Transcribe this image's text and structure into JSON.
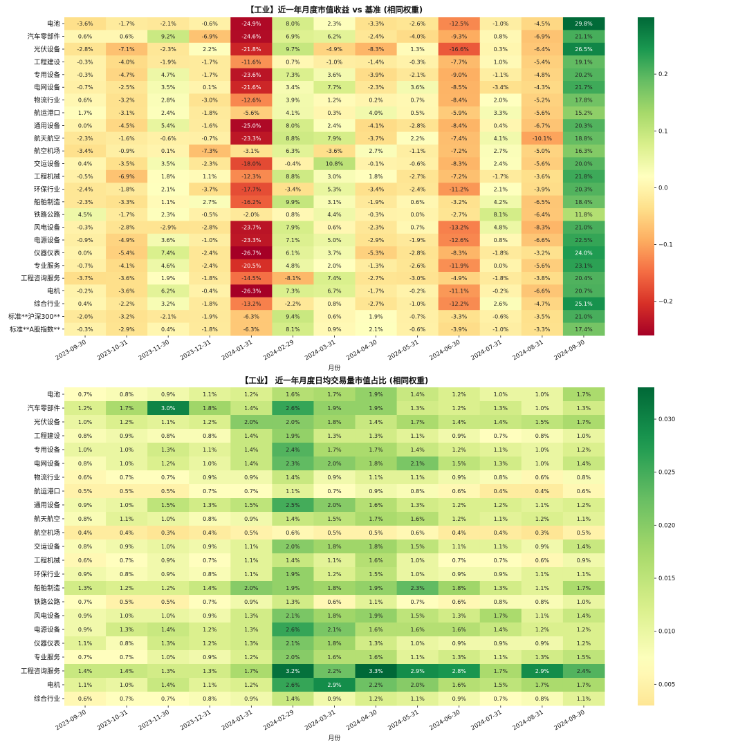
{
  "chart_data": [
    {
      "type": "heatmap",
      "title": "【工业】近一年月度市值收益 vs 基准 (相同权重)",
      "xlabel": "月份",
      "ylabel": "",
      "x_categories": [
        "2023-09-30",
        "2023-10-31",
        "2023-11-30",
        "2023-12-31",
        "2024-01-31",
        "2024-02-29",
        "2024-03-31",
        "2024-04-30",
        "2024-05-31",
        "2024-06-30",
        "2024-07-31",
        "2024-08-31",
        "2024-09-30"
      ],
      "y_categories": [
        "电池",
        "汽车零部件",
        "光伏设备",
        "工程建设",
        "专用设备",
        "电网设备",
        "物流行业",
        "航运港口",
        "通用设备",
        "航天航空",
        "航空机场",
        "交运设备",
        "工程机械",
        "环保行业",
        "船舶制造",
        "铁路公路",
        "风电设备",
        "电源设备",
        "仪器仪表",
        "专业服务",
        "工程咨询服务",
        "电机",
        "综合行业",
        "标准**沪深300**",
        "标准**A股指数**"
      ],
      "values": [
        [
          -3.6,
          -1.7,
          -2.1,
          -0.6,
          -24.9,
          8.0,
          2.3,
          -3.3,
          -2.6,
          -12.5,
          -1.0,
          -4.5,
          29.8
        ],
        [
          0.6,
          0.6,
          9.2,
          -6.9,
          -24.6,
          6.9,
          6.2,
          -2.4,
          -4.0,
          -9.3,
          0.8,
          -6.9,
          21.1
        ],
        [
          -2.8,
          -7.1,
          -2.3,
          2.2,
          -21.8,
          9.7,
          -4.9,
          -8.3,
          1.3,
          -16.6,
          0.3,
          -6.4,
          26.5
        ],
        [
          -0.3,
          -4.0,
          -1.9,
          -1.7,
          -11.6,
          0.7,
          -1.0,
          -1.4,
          -0.3,
          -7.7,
          1.0,
          -5.4,
          19.1
        ],
        [
          -0.3,
          -4.7,
          4.7,
          -1.7,
          -23.6,
          7.3,
          3.6,
          -3.9,
          -2.1,
          -9.0,
          -1.1,
          -4.8,
          20.2
        ],
        [
          -0.7,
          -2.5,
          3.5,
          0.1,
          -21.6,
          3.4,
          7.7,
          -2.3,
          3.6,
          -8.5,
          -3.4,
          -4.3,
          21.7
        ],
        [
          0.6,
          -3.2,
          2.8,
          -3.0,
          -12.6,
          3.9,
          1.2,
          0.2,
          0.7,
          -8.4,
          2.0,
          -5.2,
          17.8
        ],
        [
          1.7,
          -3.1,
          2.4,
          -1.8,
          -5.6,
          4.1,
          0.3,
          4.0,
          0.5,
          -5.9,
          3.3,
          -5.6,
          15.2
        ],
        [
          0.0,
          -4.5,
          5.4,
          -1.6,
          -25.0,
          8.0,
          2.4,
          -4.1,
          -2.8,
          -8.4,
          0.4,
          -6.7,
          20.3
        ],
        [
          -2.3,
          -1.6,
          -0.6,
          -0.7,
          -23.3,
          8.8,
          7.9,
          -3.7,
          2.2,
          -7.4,
          4.1,
          -10.1,
          18.8
        ],
        [
          -3.4,
          -0.9,
          0.1,
          -7.3,
          -3.1,
          6.3,
          -3.6,
          2.7,
          -1.1,
          -7.2,
          2.7,
          -5.0,
          16.3
        ],
        [
          0.4,
          -3.5,
          3.5,
          -2.3,
          -18.0,
          -0.4,
          10.8,
          -0.1,
          -0.6,
          -8.3,
          2.4,
          -5.6,
          20.0
        ],
        [
          -0.5,
          -6.9,
          1.8,
          1.1,
          -12.3,
          8.8,
          3.0,
          1.8,
          -2.7,
          -7.2,
          -1.7,
          -3.6,
          21.8
        ],
        [
          -2.4,
          -1.8,
          2.1,
          -3.7,
          -17.7,
          -3.4,
          5.3,
          -3.4,
          -2.4,
          -11.2,
          2.1,
          -3.9,
          20.3
        ],
        [
          -2.3,
          -3.3,
          1.1,
          2.7,
          -16.2,
          9.9,
          3.1,
          -1.9,
          0.6,
          -3.2,
          4.2,
          -6.5,
          18.4
        ],
        [
          4.5,
          -1.7,
          2.3,
          -0.5,
          -2.0,
          0.8,
          4.4,
          -0.3,
          0.0,
          -2.7,
          8.1,
          -6.4,
          11.8
        ],
        [
          -0.3,
          -2.8,
          -2.9,
          -2.8,
          -23.7,
          7.9,
          0.6,
          -2.3,
          0.7,
          -13.2,
          4.8,
          -8.3,
          21.0
        ],
        [
          -0.9,
          -4.9,
          3.6,
          -1.0,
          -23.3,
          7.1,
          5.0,
          -2.9,
          -1.9,
          -12.6,
          0.8,
          -6.6,
          22.5
        ],
        [
          -0.0,
          -5.4,
          7.4,
          -2.4,
          -26.7,
          6.1,
          3.7,
          -5.3,
          -2.8,
          -8.3,
          -1.8,
          -3.2,
          24.0
        ],
        [
          -0.7,
          -4.1,
          4.6,
          -2.4,
          -20.5,
          4.8,
          2.0,
          -1.3,
          -2.6,
          -11.9,
          0.0,
          -5.6,
          23.1
        ],
        [
          -3.7,
          -3.6,
          1.9,
          -1.8,
          -14.5,
          -8.1,
          7.4,
          -2.7,
          -3.0,
          -4.9,
          -1.8,
          -3.8,
          20.4
        ],
        [
          -0.2,
          -3.6,
          6.2,
          -0.4,
          -26.3,
          7.3,
          6.7,
          -1.7,
          -0.2,
          -11.1,
          -0.2,
          -6.6,
          20.7
        ],
        [
          0.4,
          -2.2,
          3.2,
          -1.8,
          -13.2,
          -2.2,
          0.8,
          -2.7,
          -1.0,
          -12.2,
          2.6,
          -4.7,
          25.1
        ],
        [
          -2.0,
          -3.2,
          -2.1,
          -1.9,
          -6.3,
          9.4,
          0.6,
          1.9,
          -0.7,
          -3.3,
          -0.6,
          -3.5,
          21.0
        ],
        [
          -0.3,
          -2.9,
          0.4,
          -1.8,
          -6.3,
          8.1,
          0.9,
          2.1,
          -0.6,
          -3.9,
          -1.0,
          -3.3,
          17.4
        ]
      ],
      "value_suffix": "%",
      "colormap": "RdYlGn",
      "color_range": [
        -0.26,
        0.3
      ],
      "colorbar_ticks": [
        "0.2",
        "0.1",
        "0.0",
        "−0.1",
        "−0.2"
      ],
      "colorbar_tick_values": [
        0.2,
        0.1,
        0.0,
        -0.1,
        -0.2
      ]
    },
    {
      "type": "heatmap",
      "title": "【工业】 近一年月度日均交易量市值占比 (相同权重)",
      "xlabel": "月份",
      "ylabel": "",
      "x_categories": [
        "2023-09-30",
        "2023-10-31",
        "2023-11-30",
        "2023-12-31",
        "2024-01-31",
        "2024-02-29",
        "2024-03-31",
        "2024-04-30",
        "2024-05-31",
        "2024-06-30",
        "2024-07-31",
        "2024-08-31",
        "2024-09-30"
      ],
      "y_categories": [
        "电池",
        "汽车零部件",
        "光伏设备",
        "工程建设",
        "专用设备",
        "电网设备",
        "物流行业",
        "航运港口",
        "通用设备",
        "航天航空",
        "航空机场",
        "交运设备",
        "工程机械",
        "环保行业",
        "船舶制造",
        "铁路公路",
        "风电设备",
        "电源设备",
        "仪器仪表",
        "专业服务",
        "工程咨询服务",
        "电机",
        "综合行业"
      ],
      "values": [
        [
          0.7,
          0.8,
          0.9,
          1.1,
          1.2,
          1.6,
          1.7,
          1.9,
          1.4,
          1.2,
          1.0,
          1.0,
          1.7
        ],
        [
          1.2,
          1.7,
          3.0,
          1.8,
          1.4,
          2.6,
          1.9,
          1.9,
          1.3,
          1.2,
          1.3,
          1.0,
          1.3
        ],
        [
          1.0,
          1.2,
          1.1,
          1.2,
          2.0,
          2.0,
          1.8,
          1.4,
          1.7,
          1.4,
          1.4,
          1.5,
          1.7
        ],
        [
          0.8,
          0.9,
          0.8,
          0.8,
          1.4,
          1.9,
          1.3,
          1.3,
          1.1,
          0.9,
          0.7,
          0.8,
          1.0
        ],
        [
          1.0,
          1.0,
          1.3,
          1.1,
          1.4,
          2.4,
          1.7,
          1.7,
          1.4,
          1.2,
          1.1,
          1.0,
          1.2
        ],
        [
          0.8,
          1.0,
          1.2,
          1.0,
          1.4,
          2.3,
          2.0,
          1.8,
          2.1,
          1.5,
          1.3,
          1.0,
          1.4
        ],
        [
          0.6,
          0.7,
          0.7,
          0.9,
          0.9,
          1.4,
          0.9,
          1.1,
          1.1,
          0.9,
          0.8,
          0.6,
          0.8
        ],
        [
          0.5,
          0.5,
          0.5,
          0.7,
          0.7,
          1.1,
          0.7,
          0.9,
          0.8,
          0.6,
          0.4,
          0.4,
          0.6
        ],
        [
          0.9,
          1.0,
          1.5,
          1.3,
          1.5,
          2.5,
          2.0,
          1.6,
          1.3,
          1.2,
          1.2,
          1.1,
          1.2
        ],
        [
          0.8,
          1.1,
          1.0,
          0.8,
          0.9,
          1.4,
          1.5,
          1.7,
          1.6,
          1.2,
          1.1,
          1.2,
          1.1
        ],
        [
          0.4,
          0.4,
          0.3,
          0.4,
          0.5,
          0.6,
          0.5,
          0.5,
          0.6,
          0.4,
          0.4,
          0.3,
          0.5
        ],
        [
          0.8,
          0.9,
          1.0,
          0.9,
          1.1,
          2.0,
          1.8,
          1.8,
          1.5,
          1.1,
          1.1,
          0.9,
          1.4
        ],
        [
          0.6,
          0.7,
          0.9,
          0.7,
          1.1,
          1.4,
          1.1,
          1.6,
          1.0,
          0.7,
          0.7,
          0.6,
          0.9
        ],
        [
          0.9,
          0.8,
          0.9,
          0.8,
          1.1,
          1.9,
          1.2,
          1.5,
          1.0,
          0.9,
          0.9,
          1.1,
          1.1
        ],
        [
          1.3,
          1.2,
          1.2,
          1.4,
          2.0,
          1.9,
          1.8,
          1.9,
          2.3,
          1.8,
          1.3,
          1.1,
          1.7
        ],
        [
          0.7,
          0.5,
          0.5,
          0.7,
          0.9,
          1.3,
          0.6,
          1.1,
          0.7,
          0.6,
          0.8,
          0.8,
          1.0
        ],
        [
          0.9,
          1.0,
          1.0,
          0.9,
          1.3,
          2.1,
          1.8,
          1.9,
          1.5,
          1.3,
          1.7,
          1.1,
          1.4
        ],
        [
          0.9,
          1.3,
          1.4,
          1.2,
          1.3,
          2.6,
          2.1,
          1.6,
          1.6,
          1.6,
          1.4,
          1.2,
          1.2
        ],
        [
          1.1,
          0.8,
          1.3,
          1.2,
          1.3,
          2.1,
          1.8,
          1.3,
          1.0,
          0.9,
          0.9,
          0.9,
          1.2
        ],
        [
          0.7,
          0.7,
          1.0,
          0.9,
          1.2,
          2.0,
          1.6,
          1.6,
          1.1,
          1.3,
          1.1,
          1.3,
          1.5
        ],
        [
          1.4,
          1.4,
          1.3,
          1.3,
          1.7,
          3.2,
          2.2,
          3.3,
          2.9,
          2.8,
          1.7,
          2.9,
          2.4
        ],
        [
          1.1,
          1.0,
          1.4,
          1.1,
          1.2,
          2.6,
          2.9,
          2.2,
          2.0,
          1.6,
          1.5,
          1.7,
          1.7
        ],
        [
          0.6,
          0.7,
          0.7,
          0.8,
          0.9,
          1.4,
          0.9,
          1.2,
          1.1,
          0.9,
          0.7,
          0.8,
          1.1
        ]
      ],
      "value_suffix": "%",
      "colormap": "RdYlGn_upper",
      "color_range": [
        0.003,
        0.033
      ],
      "colorbar_ticks": [
        "0.030",
        "0.025",
        "0.020",
        "0.015",
        "0.010",
        "0.005"
      ],
      "colorbar_tick_values": [
        0.03,
        0.025,
        0.02,
        0.015,
        0.01,
        0.005
      ]
    }
  ]
}
